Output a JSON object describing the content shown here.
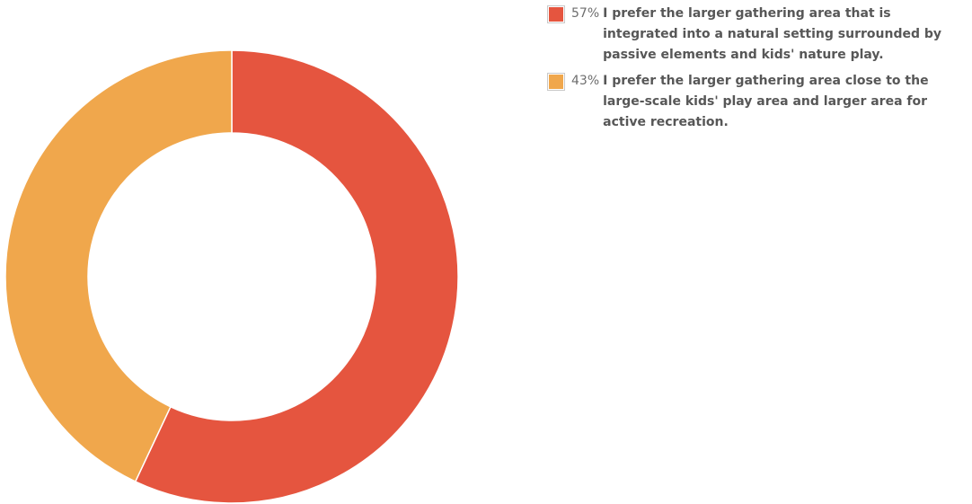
{
  "colors": {
    "series_a": "#e5553f",
    "series_b": "#f0a74c",
    "separator": "#ffffff"
  },
  "chart_data": {
    "type": "pie",
    "subtype": "donut",
    "legend_position": "right",
    "slices": [
      {
        "percent_label": "57%",
        "value": 57,
        "label": "I prefer the larger gathering area that is integrated into a natural setting surrounded by passive elements and kids' nature play.",
        "color": "#e5553f"
      },
      {
        "percent_label": "43%",
        "value": 43,
        "label": "I prefer the larger gathering area close to the large-scale kids' play area and larger area for active recreation.",
        "color": "#f0a74c"
      }
    ]
  }
}
